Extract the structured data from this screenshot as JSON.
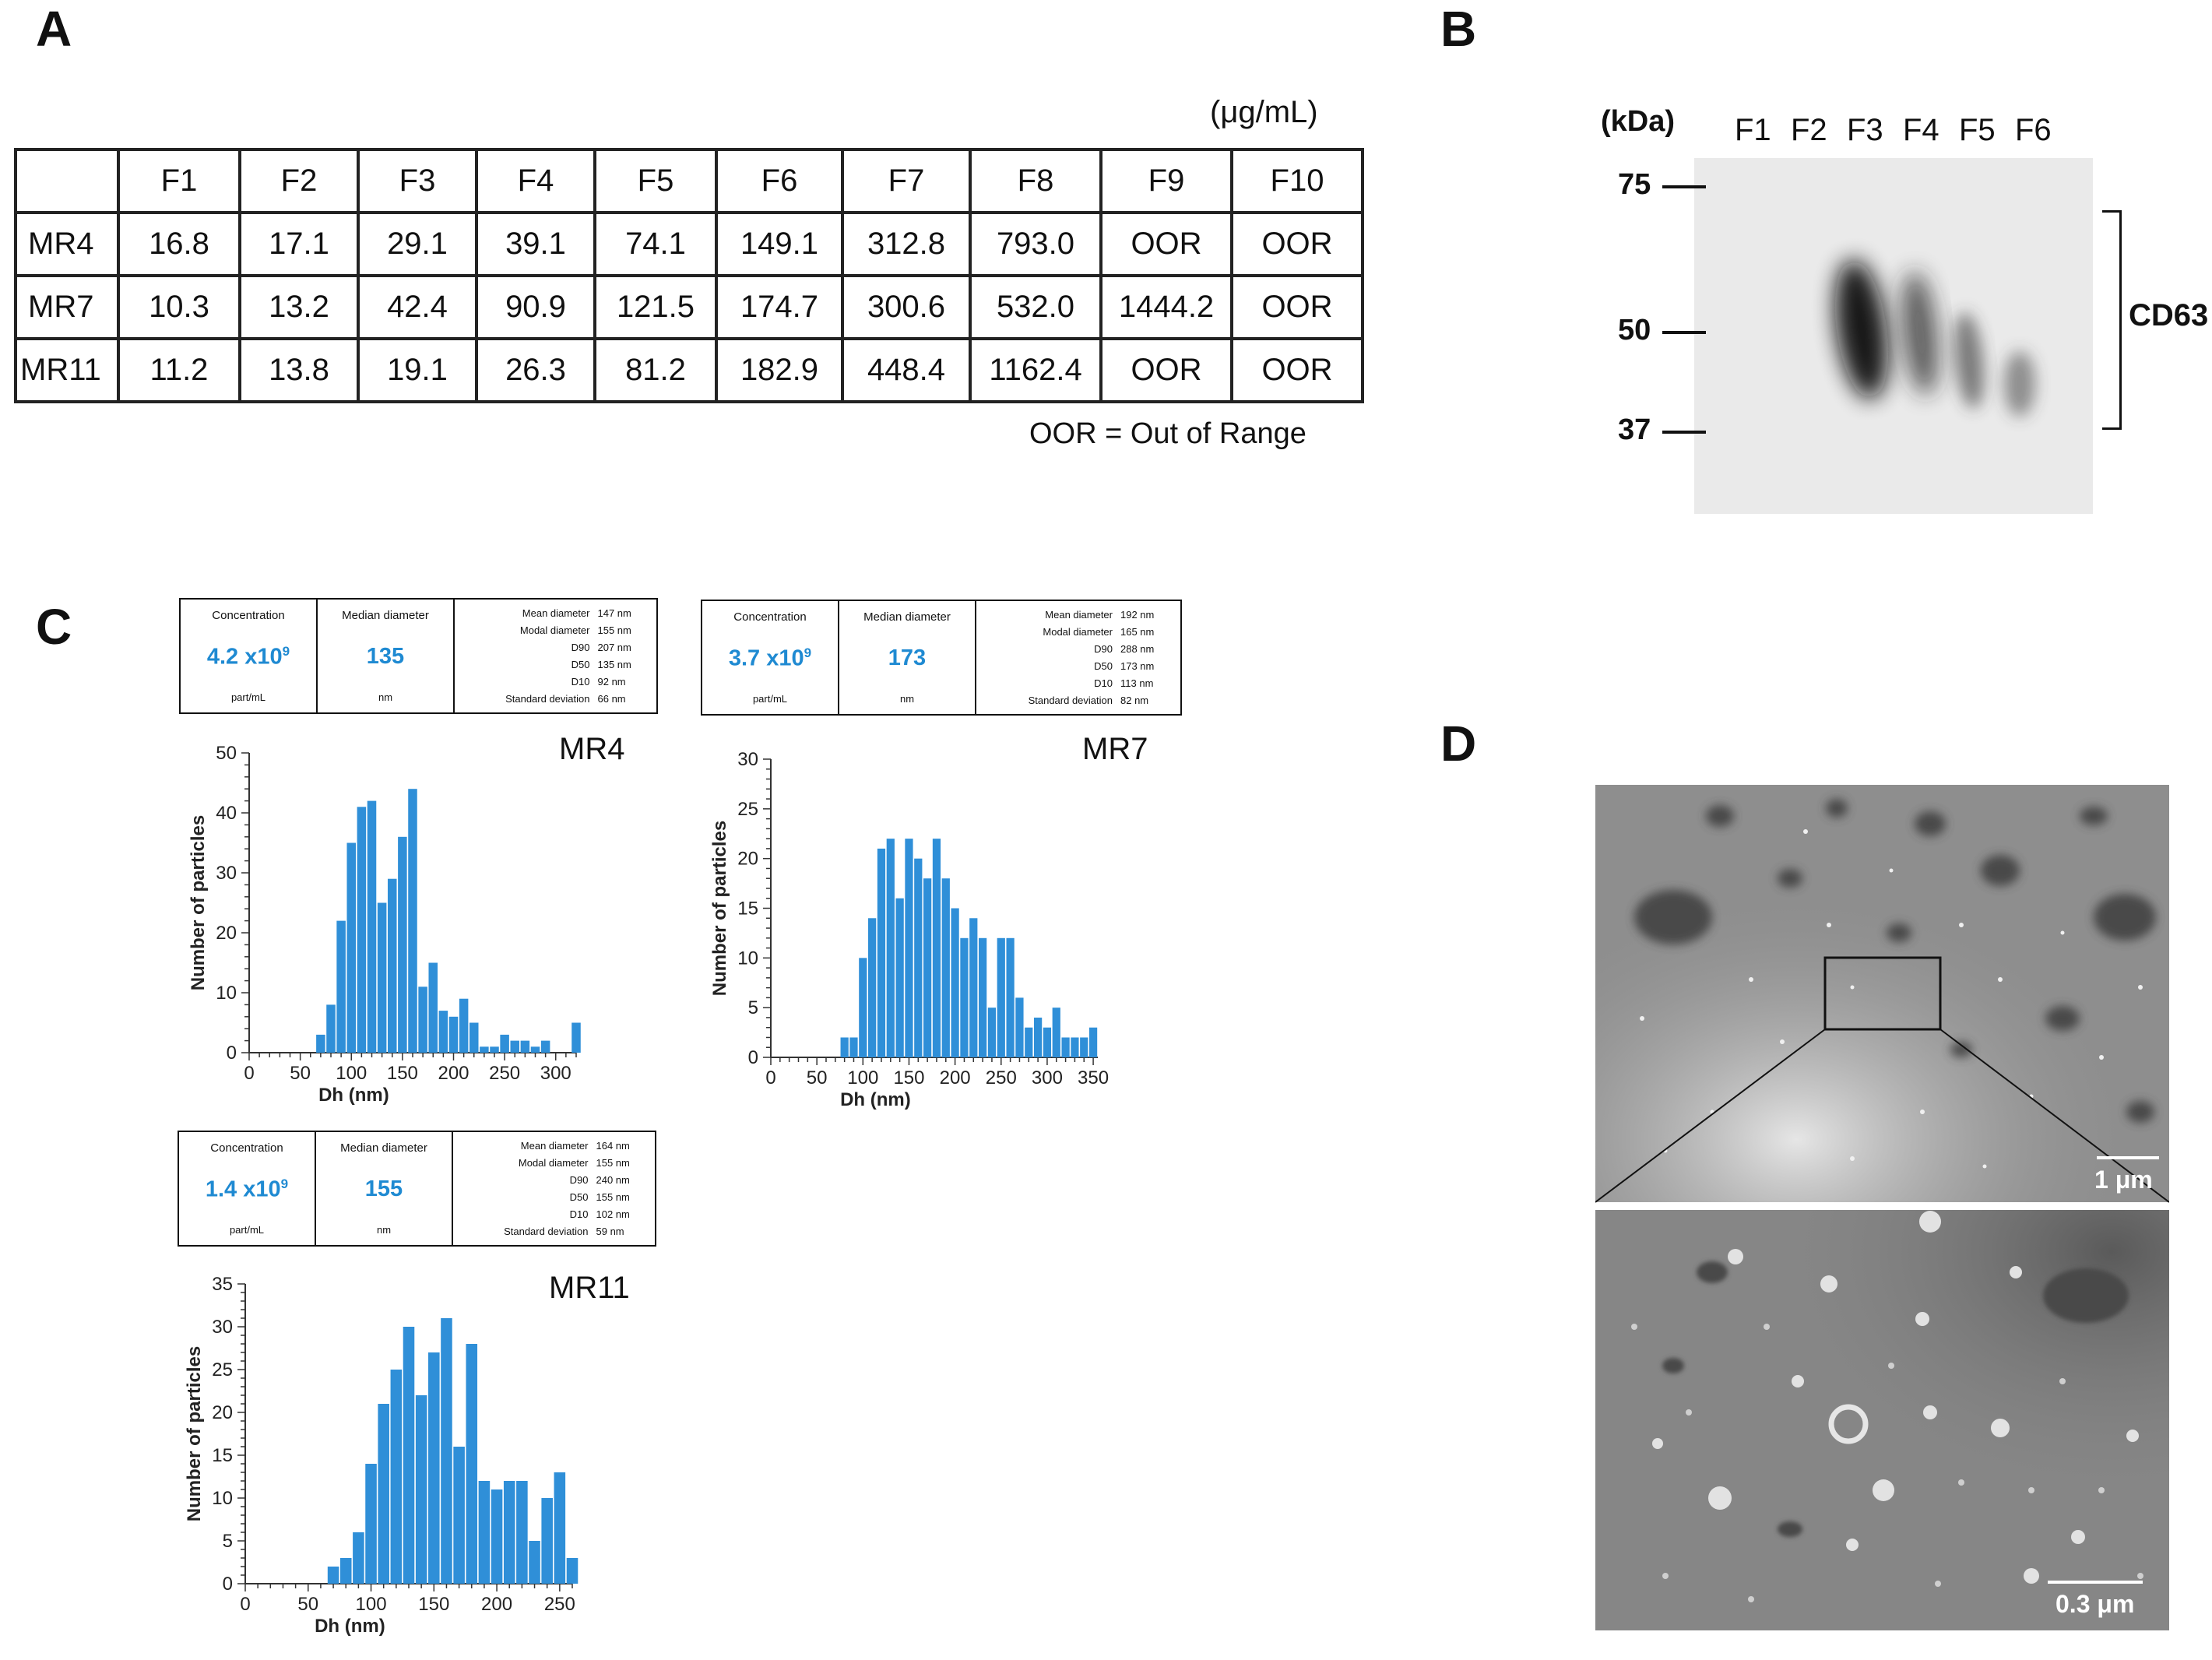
{
  "panel_a": {
    "letter": "A",
    "unit": "(μg/mL)",
    "columns": [
      "",
      "F1",
      "F2",
      "F3",
      "F4",
      "F5",
      "F6",
      "F7",
      "F8",
      "F9",
      "F10"
    ],
    "rows": [
      {
        "label": "MR4",
        "values": [
          "16.8",
          "17.1",
          "29.1",
          "39.1",
          "74.1",
          "149.1",
          "312.8",
          "793.0",
          "OOR",
          "OOR"
        ]
      },
      {
        "label": "MR7",
        "values": [
          "10.3",
          "13.2",
          "42.4",
          "90.9",
          "121.5",
          "174.7",
          "300.6",
          "532.0",
          "1444.2",
          "OOR"
        ]
      },
      {
        "label": "MR11",
        "values": [
          "11.2",
          "13.8",
          "19.1",
          "26.3",
          "81.2",
          "182.9",
          "448.4",
          "1162.4",
          "OOR",
          "OOR"
        ]
      }
    ],
    "note": "OOR = Out of Range"
  },
  "panel_b": {
    "letter": "B",
    "kda_label": "(kDa)",
    "lanes": [
      "F1",
      "F2",
      "F3",
      "F4",
      "F5",
      "F6"
    ],
    "markers": [
      "75",
      "50",
      "37"
    ],
    "band_label": "CD63"
  },
  "panel_c": {
    "letter": "C",
    "samples": [
      {
        "name": "MR4",
        "concentration_header": "Concentration",
        "concentration_mantissa": "4.2 x10",
        "concentration_exp": "9",
        "concentration_unit": "part/mL",
        "median_header": "Median diameter",
        "median_value": "135",
        "median_unit": "nm",
        "stats": [
          {
            "k": "Mean diameter",
            "v": "147 nm"
          },
          {
            "k": "Modal diameter",
            "v": "155 nm"
          },
          {
            "k": "D90",
            "v": "207 nm"
          },
          {
            "k": "D50",
            "v": "135 nm"
          },
          {
            "k": "D10",
            "v": "92 nm"
          },
          {
            "k": "Standard deviation",
            "v": "66 nm"
          }
        ]
      },
      {
        "name": "MR7",
        "concentration_header": "Concentration",
        "concentration_mantissa": "3.7 x10",
        "concentration_exp": "9",
        "concentration_unit": "part/mL",
        "median_header": "Median diameter",
        "median_value": "173",
        "median_unit": "nm",
        "stats": [
          {
            "k": "Mean diameter",
            "v": "192 nm"
          },
          {
            "k": "Modal diameter",
            "v": "165 nm"
          },
          {
            "k": "D90",
            "v": "288 nm"
          },
          {
            "k": "D50",
            "v": "173 nm"
          },
          {
            "k": "D10",
            "v": "113 nm"
          },
          {
            "k": "Standard deviation",
            "v": "82 nm"
          }
        ]
      },
      {
        "name": "MR11",
        "concentration_header": "Concentration",
        "concentration_mantissa": "1.4 x10",
        "concentration_exp": "9",
        "concentration_unit": "part/mL",
        "median_header": "Median diameter",
        "median_value": "155",
        "median_unit": "nm",
        "stats": [
          {
            "k": "Mean diameter",
            "v": "164 nm"
          },
          {
            "k": "Modal diameter",
            "v": "155 nm"
          },
          {
            "k": "D90",
            "v": "240 nm"
          },
          {
            "k": "D50",
            "v": "155 nm"
          },
          {
            "k": "D10",
            "v": "102 nm"
          },
          {
            "k": "Standard deviation",
            "v": "59 nm"
          }
        ]
      }
    ]
  },
  "panel_d": {
    "letter": "D",
    "scale_top": "1 μm",
    "scale_bottom": "0.3 μm"
  },
  "chart_data": [
    {
      "type": "bar",
      "title": "MR4",
      "xlabel": "Dh (nm)",
      "ylabel": "Number of particles",
      "xlim": [
        0,
        320
      ],
      "ylim": [
        0,
        50
      ],
      "xticks": [
        0,
        50,
        100,
        150,
        200,
        250,
        300
      ],
      "yticks": [
        0,
        10,
        20,
        30,
        40,
        50
      ],
      "bin_width": 10,
      "bin_starts": [
        65,
        75,
        85,
        95,
        105,
        115,
        125,
        135,
        145,
        155,
        165,
        175,
        185,
        195,
        205,
        215,
        225,
        235,
        245,
        255,
        265,
        275,
        285,
        295,
        305,
        315
      ],
      "values": [
        3,
        8,
        22,
        35,
        41,
        42,
        25,
        29,
        36,
        44,
        11,
        15,
        7,
        6,
        9,
        5,
        1,
        1,
        3,
        2,
        2,
        1,
        2,
        0,
        0,
        5
      ]
    },
    {
      "type": "bar",
      "title": "MR7",
      "xlabel": "Dh (nm)",
      "ylabel": "Number of particles",
      "xlim": [
        0,
        355
      ],
      "ylim": [
        0,
        30
      ],
      "xticks": [
        0,
        50,
        100,
        150,
        200,
        250,
        300,
        350
      ],
      "yticks": [
        0,
        5,
        10,
        15,
        20,
        25,
        30
      ],
      "bin_width": 10,
      "bin_starts": [
        75,
        85,
        95,
        105,
        115,
        125,
        135,
        145,
        155,
        165,
        175,
        185,
        195,
        205,
        215,
        225,
        235,
        245,
        255,
        265,
        275,
        285,
        295,
        305,
        315,
        325,
        335,
        345
      ],
      "values": [
        2,
        2,
        10,
        14,
        21,
        22,
        16,
        22,
        20,
        18,
        22,
        18,
        15,
        12,
        14,
        12,
        5,
        12,
        12,
        6,
        3,
        4,
        3,
        5,
        2,
        2,
        2,
        3
      ]
    },
    {
      "type": "bar",
      "title": "MR11",
      "xlabel": "Dh (nm)",
      "ylabel": "Number of particles",
      "xlim": [
        0,
        260
      ],
      "ylim": [
        0,
        35
      ],
      "xticks": [
        0,
        50,
        100,
        150,
        200,
        250
      ],
      "yticks": [
        0,
        5,
        10,
        15,
        20,
        25,
        30,
        35
      ],
      "bin_width": 10,
      "bin_starts": [
        65,
        75,
        85,
        95,
        105,
        115,
        125,
        135,
        145,
        155,
        165,
        175,
        185,
        195,
        205,
        215,
        225,
        235,
        245,
        255
      ],
      "values": [
        2,
        3,
        6,
        14,
        21,
        25,
        30,
        22,
        27,
        31,
        16,
        28,
        12,
        11,
        12,
        12,
        5,
        10,
        13,
        3
      ]
    }
  ]
}
